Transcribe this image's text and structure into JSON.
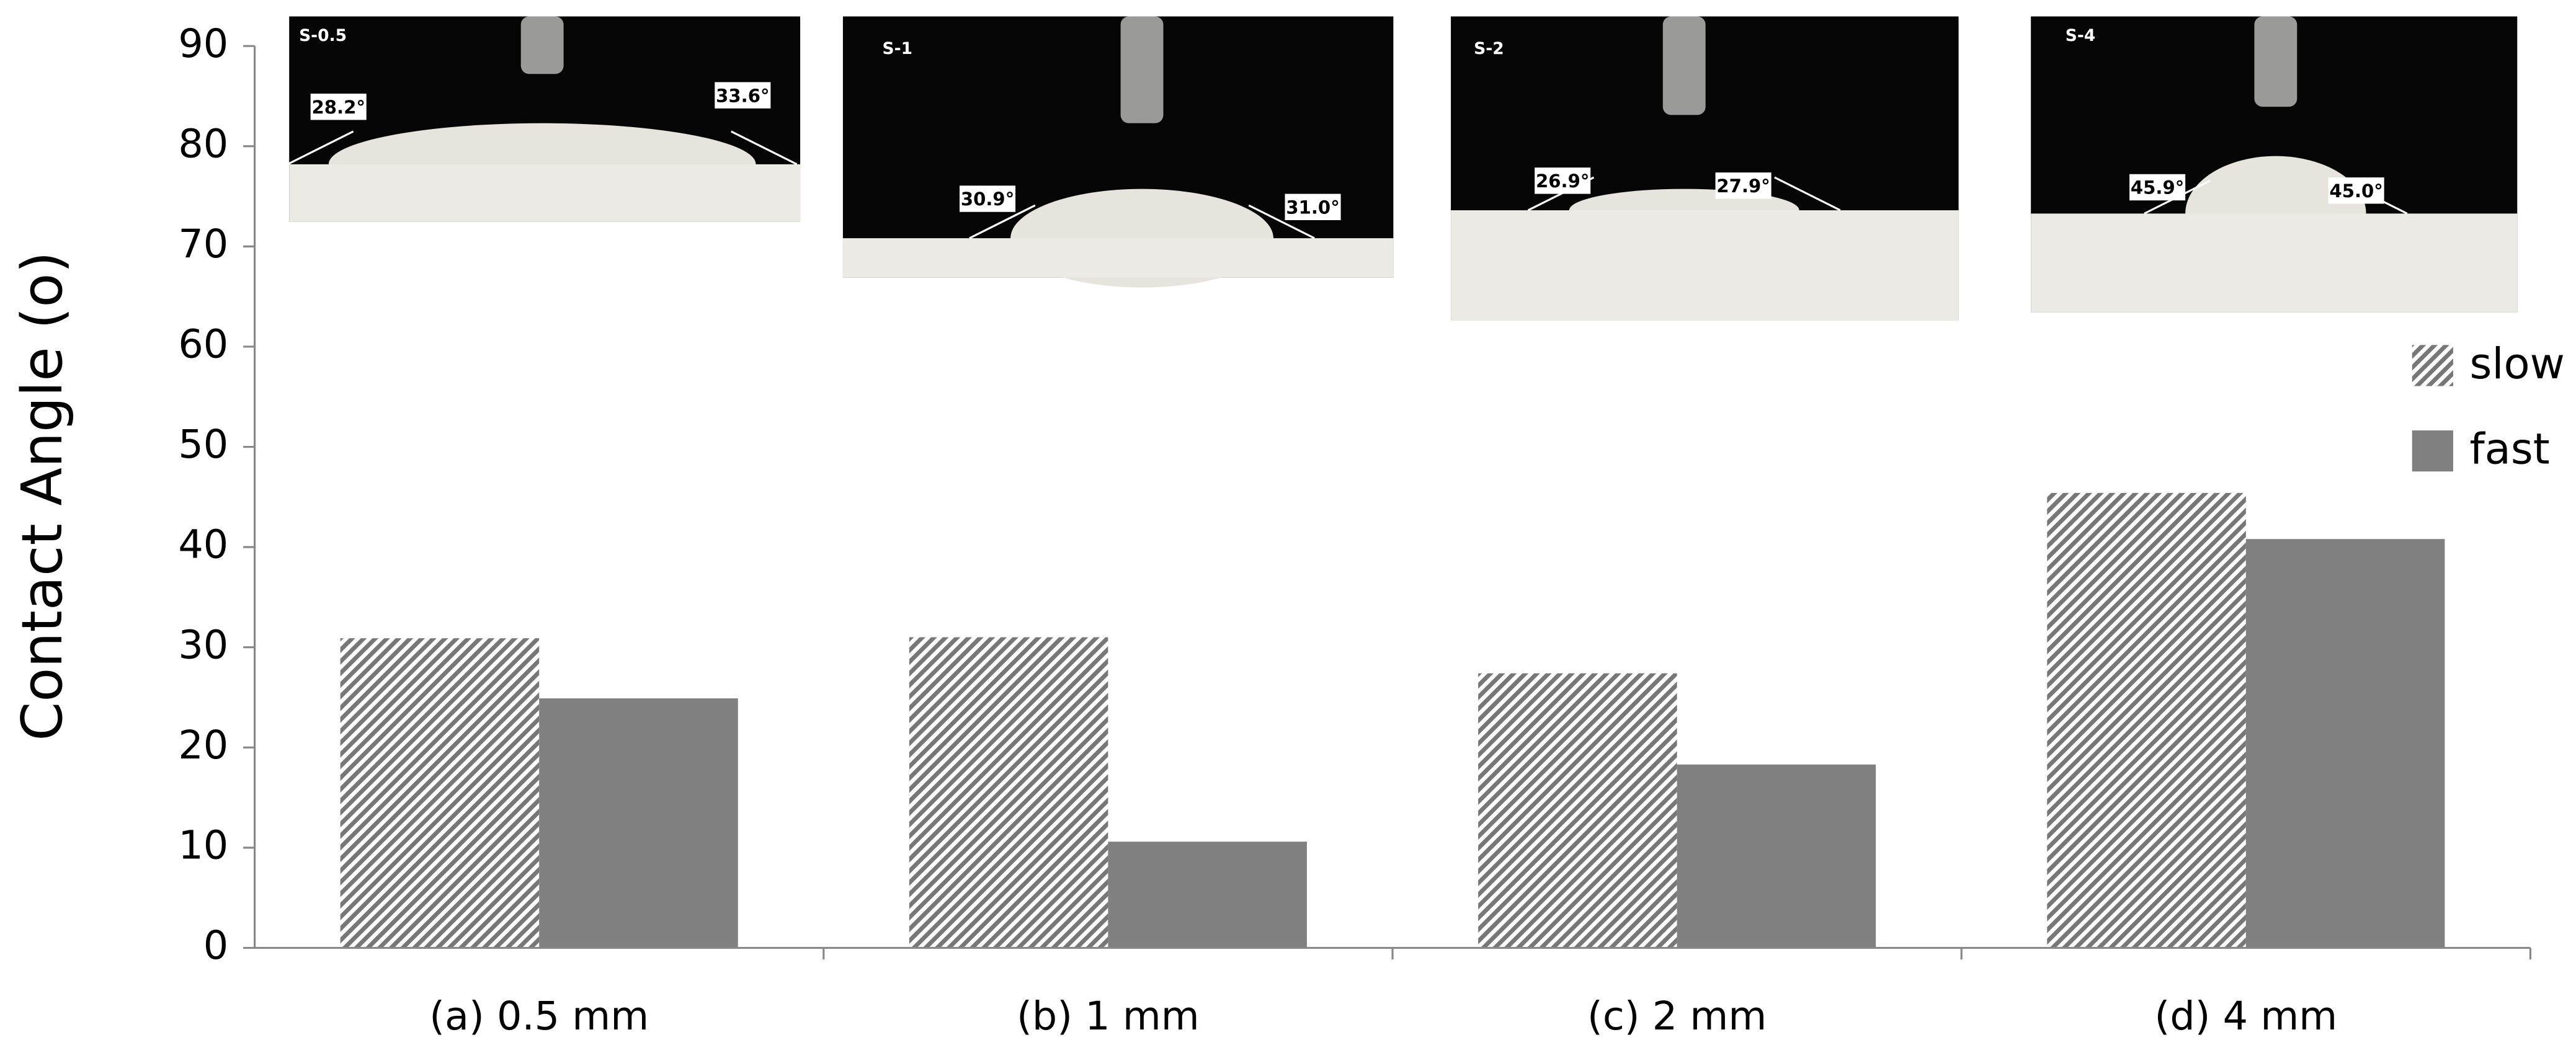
{
  "chart_data": {
    "type": "bar",
    "ylabel": "Contact Angle (o)",
    "categories": [
      "(a) 0.5 mm",
      "(b) 1 mm",
      "(c) 2 mm",
      "(d) 4 mm"
    ],
    "series": [
      {
        "name": "slow",
        "color": "#777777",
        "pattern": "hatch",
        "values": [
          30.9,
          31.0,
          27.4,
          45.4
        ]
      },
      {
        "name": "fast",
        "color": "#808080",
        "pattern": "solid",
        "values": [
          24.9,
          10.6,
          18.3,
          40.8
        ]
      }
    ],
    "ylim": [
      0,
      90
    ],
    "yticks": [
      0,
      10,
      20,
      30,
      40,
      50,
      60,
      70,
      80,
      90
    ],
    "legend": "right",
    "insets": [
      {
        "label": "S-0.5",
        "angles": [
          "28.2°",
          "33.6°"
        ]
      },
      {
        "label": "S-1",
        "angles": [
          "30.9°",
          "31.0°"
        ]
      },
      {
        "label": "S-2",
        "angles": [
          "26.9°",
          "27.9°"
        ]
      },
      {
        "label": "S-4",
        "angles": [
          "45.9°",
          "45.0°"
        ]
      }
    ]
  }
}
